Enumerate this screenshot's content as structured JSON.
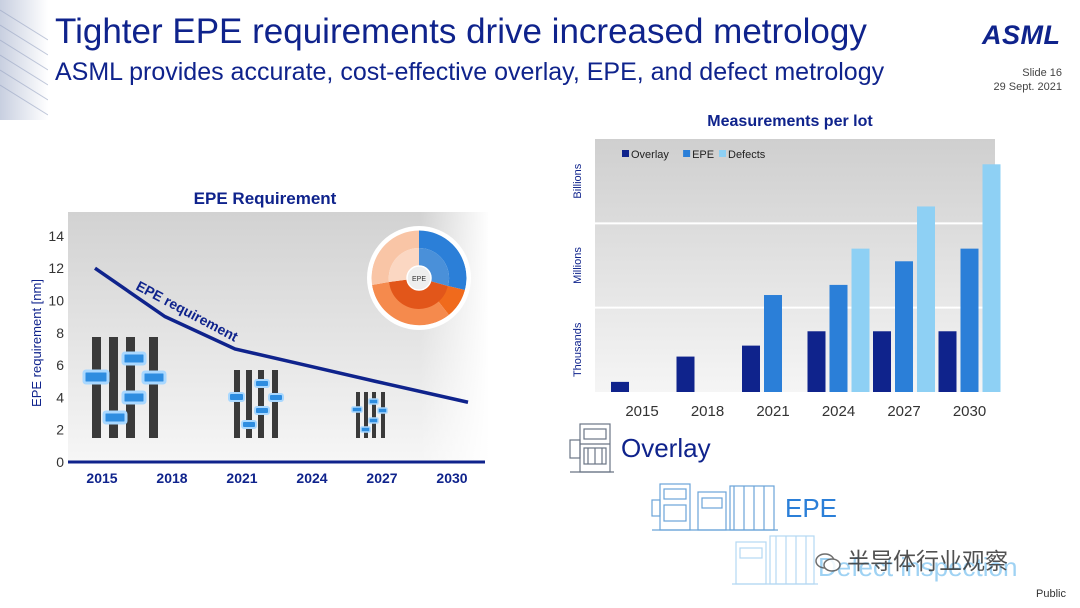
{
  "slide": {
    "title": "Tighter EPE requirements drive increased metrology",
    "subtitle": "ASML provides accurate, cost-effective overlay, EPE, and defect metrology",
    "logo": "ASML",
    "slide_number": "Slide 16",
    "date": "29 Sept. 2021",
    "classification": "Public",
    "watermark": "半导体行业观察"
  },
  "labels": {
    "overlay": "Overlay",
    "epe": "EPE",
    "defect": "Defect inspection"
  },
  "colors": {
    "brand": "#0f238c",
    "overlay": "#0f238c",
    "epe": "#2b7fd8",
    "defects": "#8ed0f4"
  },
  "chart_data": [
    {
      "type": "line",
      "title": "EPE Requirement",
      "ylabel": "EPE requirement [nm]",
      "xlabel": "",
      "categories": [
        "2015",
        "2018",
        "2021",
        "2024",
        "2027",
        "2030"
      ],
      "yticks": [
        "0",
        "2",
        "4",
        "6",
        "8",
        "10",
        "12",
        "14"
      ],
      "ylim": [
        0,
        14
      ],
      "series": [
        {
          "name": "EPE requirement",
          "values": [
            12,
            9,
            7,
            6,
            5,
            3.7
          ]
        }
      ],
      "inset_center_label": "EPE"
    },
    {
      "type": "bar",
      "title": "Measurements per lot",
      "categories": [
        "2015",
        "2018",
        "2021",
        "2024",
        "2027",
        "2030"
      ],
      "y_bands": [
        "Thousands",
        "Millions",
        "Billions"
      ],
      "ylim": [
        0,
        3
      ],
      "grid": true,
      "legend": "top-left",
      "series": [
        {
          "name": "Overlay",
          "values": [
            0.12,
            0.42,
            0.55,
            0.72,
            0.72,
            0.72
          ]
        },
        {
          "name": "EPE",
          "values": [
            null,
            null,
            1.15,
            1.27,
            1.55,
            1.7
          ]
        },
        {
          "name": "Defects",
          "values": [
            null,
            null,
            null,
            1.7,
            2.2,
            2.7
          ]
        }
      ]
    }
  ]
}
